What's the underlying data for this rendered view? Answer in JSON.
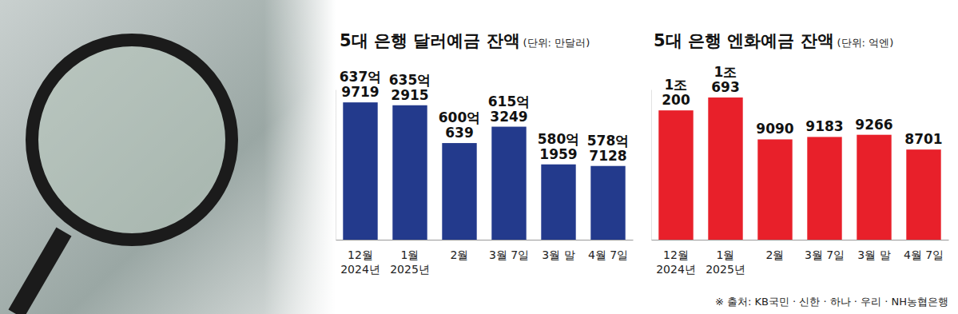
{
  "chart_data": [
    {
      "type": "bar",
      "title": "5대 은행 달러예금 잔액",
      "subtitle": "(단위: 만달러)",
      "categories": [
        "12월\n2024년",
        "1월\n2025년",
        "2월",
        "3월 7일",
        "3월 말",
        "4월 7일"
      ],
      "values": [
        6379719,
        6352915,
        6000639,
        6153249,
        5801959,
        5787128
      ],
      "value_labels": [
        "637억\n9719",
        "635억\n2915",
        "600억\n639",
        "615억\n3249",
        "580억\n1959",
        "578억\n7128"
      ],
      "color": "#233a8c",
      "ylim": [
        5100000,
        6500000
      ],
      "yticks": [],
      "data_labels": true,
      "tick_labels": "x",
      "grid": false
    },
    {
      "type": "bar",
      "title": "5대 은행 엔화예금 잔액",
      "subtitle": "(단위: 억엔)",
      "categories": [
        "12월\n2024년",
        "1월\n2025년",
        "2월",
        "3월 7일",
        "3월 말",
        "4월 7일"
      ],
      "values": [
        10200,
        10693,
        9090,
        9183,
        9266,
        8701
      ],
      "value_labels": [
        "1조\n200",
        "1조\n693",
        "9090",
        "9183",
        "9266",
        "8701"
      ],
      "color": "#e8202a",
      "ylim": [
        5250,
        11000
      ],
      "yticks": [],
      "data_labels": true,
      "tick_labels": "x",
      "grid": false
    }
  ],
  "note": "※ 출처: KB국민 · 신한 · 하나 · 우리 · NH농협은행"
}
